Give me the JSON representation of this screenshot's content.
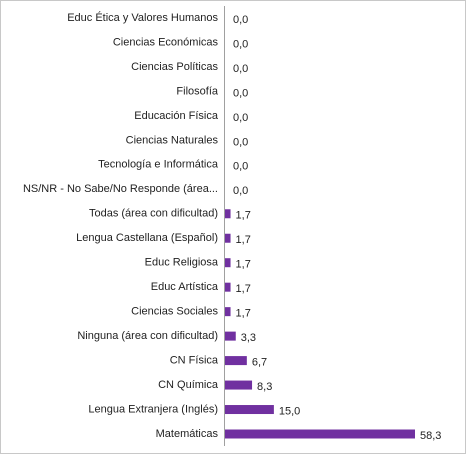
{
  "chart_data": {
    "type": "bar",
    "orientation": "horizontal",
    "color": "#7030a0",
    "categories": [
      "Educ Ética y Valores Humanos",
      "Ciencias Económicas",
      "Ciencias Políticas",
      "Filosofía",
      "Educación Física",
      "Ciencias Naturales",
      "Tecnología e Informática",
      "NS/NR - No Sabe/No Responde  (área...",
      "Todas (área con dificultad)",
      "Lengua Castellana (Español)",
      "Educ Religiosa",
      "Educ Artística",
      "Ciencias Sociales",
      "Ninguna (área con dificultad)",
      "CN Física",
      "CN Química",
      "Lengua Extranjera (Inglés)",
      "Matemáticas"
    ],
    "values": [
      0,
      0,
      0,
      0,
      0,
      0,
      0,
      0,
      1.7,
      1.7,
      1.7,
      1.7,
      1.7,
      3.3,
      6.7,
      8.3,
      15,
      58.3
    ],
    "value_labels": [
      "0,0",
      "0,0",
      "0,0",
      "0,0",
      "0,0",
      "0,0",
      "0,0",
      "0,0",
      "1,7",
      "1,7",
      "1,7",
      "1,7",
      "1,7",
      "3,3",
      "6,7",
      "8,3",
      "15,0",
      "58,3"
    ]
  }
}
